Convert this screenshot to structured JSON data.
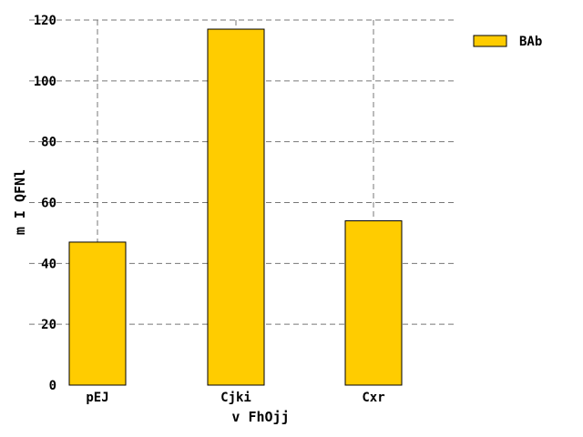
{
  "chart_data": {
    "type": "bar",
    "categories": [
      "pEJ",
      "Cjki",
      "Cxr"
    ],
    "series": [
      {
        "name": "BAb",
        "values": [
          47,
          117,
          54
        ],
        "color": "#ffcc00"
      }
    ],
    "xlabel": "v  FhOjj",
    "ylabel": "m I   QFNl",
    "ylim": [
      0,
      120
    ],
    "yticks": [
      0,
      20,
      40,
      60,
      80,
      100,
      120
    ],
    "grid": true,
    "legend_position": "top-right"
  }
}
